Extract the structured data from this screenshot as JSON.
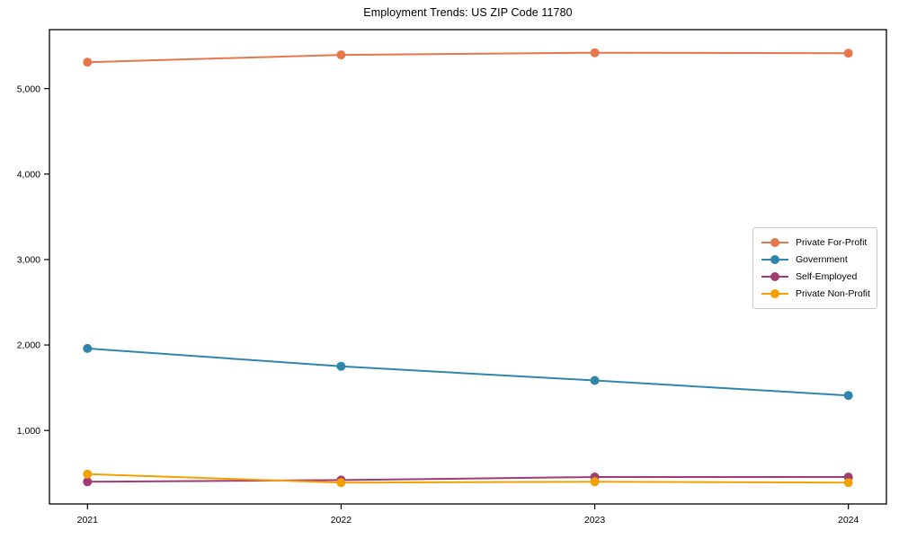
{
  "chart_data": {
    "type": "line",
    "title": "Employment Trends: US ZIP Code 11780",
    "x": [
      2021,
      2022,
      2023,
      2024
    ],
    "x_tick_labels": [
      "2021",
      "2022",
      "2023",
      "2024"
    ],
    "xlim": [
      2020.85,
      2024.15
    ],
    "ylim": [
      140,
      5690
    ],
    "y_ticks": [
      1000,
      2000,
      3000,
      4000,
      5000
    ],
    "y_tick_labels": [
      "1,000",
      "2,000",
      "3,000",
      "4,000",
      "5,000"
    ],
    "grid": false,
    "legend_position": "center-right",
    "axis_color": "#000000",
    "legend_border_color": "#c9c9c9",
    "series": [
      {
        "name": "Private For-Profit",
        "color": "#E8764B",
        "values": [
          5310,
          5395,
          5420,
          5415
        ]
      },
      {
        "name": "Government",
        "color": "#2E86AB",
        "values": [
          1960,
          1750,
          1585,
          1410
        ]
      },
      {
        "name": "Self-Employed",
        "color": "#A23B72",
        "values": [
          400,
          420,
          455,
          455
        ]
      },
      {
        "name": "Private Non-Profit",
        "color": "#F5A002",
        "values": [
          490,
          390,
          400,
          390
        ]
      }
    ]
  }
}
